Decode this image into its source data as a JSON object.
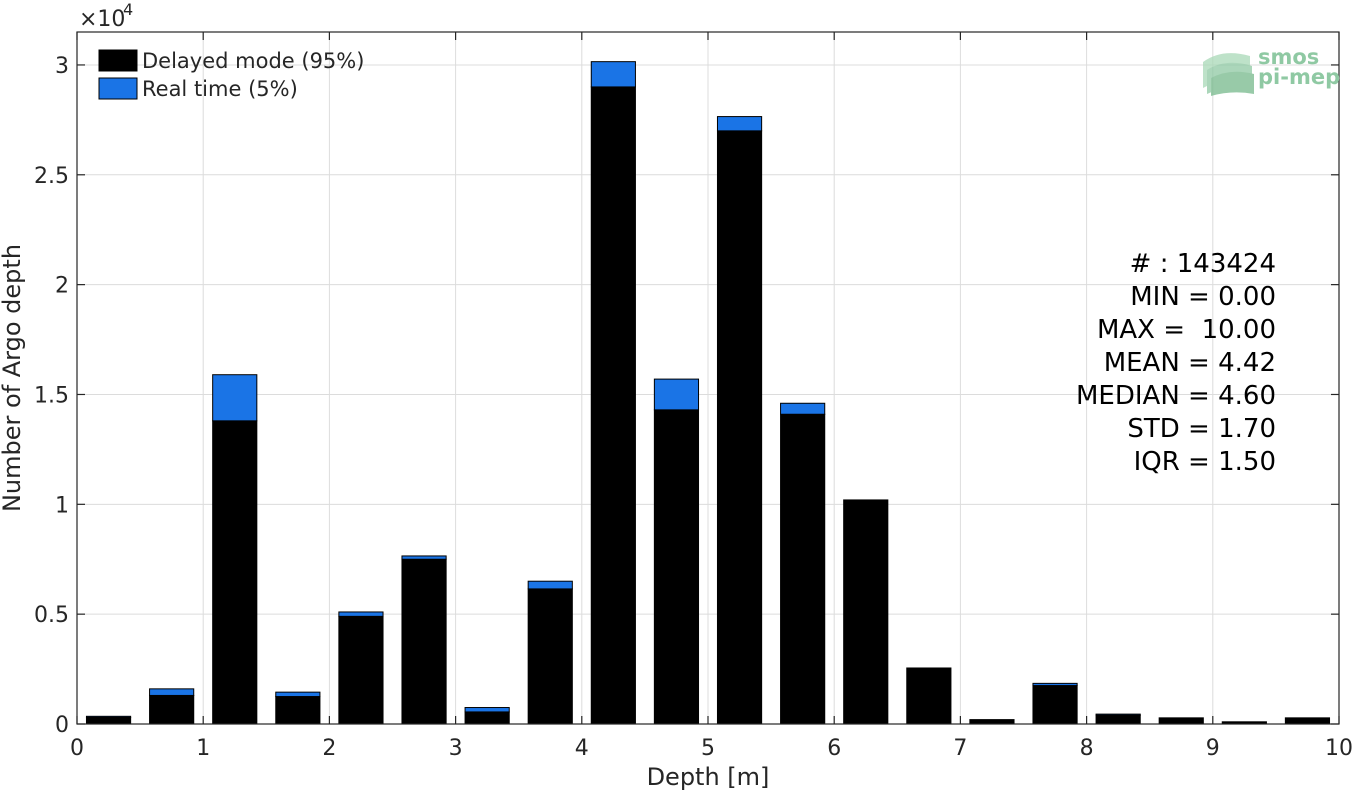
{
  "chart_data": {
    "type": "bar",
    "stacked": true,
    "x": [
      0.25,
      0.75,
      1.25,
      1.75,
      2.25,
      2.75,
      3.25,
      3.75,
      4.25,
      4.75,
      5.25,
      5.75,
      6.25,
      6.75,
      7.25,
      7.75,
      8.25,
      8.75,
      9.25,
      9.75
    ],
    "bar_width": 0.35,
    "series": [
      {
        "name": "Delayed mode (95%)",
        "color": "#000000",
        "values": [
          300,
          1300,
          13800,
          1250,
          4900,
          7500,
          550,
          6150,
          29000,
          14300,
          27000,
          14100,
          10200,
          2550,
          200,
          1750,
          400,
          280,
          100,
          280
        ]
      },
      {
        "name": "Real time (5%)",
        "color": "#1a74e6",
        "values": [
          50,
          300,
          2100,
          200,
          200,
          150,
          200,
          350,
          1150,
          1400,
          650,
          500,
          0,
          0,
          0,
          100,
          50,
          0,
          0,
          0
        ]
      }
    ],
    "xlabel": "Depth [m]",
    "ylabel": "Number of Argo depth",
    "xlim": [
      0,
      10
    ],
    "ylim": [
      0,
      31500
    ],
    "xticks": [
      "0",
      "1",
      "2",
      "3",
      "4",
      "5",
      "6",
      "7",
      "8",
      "9",
      "10"
    ],
    "xtick_values": [
      0,
      1,
      2,
      3,
      4,
      5,
      6,
      7,
      8,
      9,
      10
    ],
    "yticks": [
      "0",
      "0.5",
      "1",
      "1.5",
      "2",
      "2.5",
      "3"
    ],
    "ytick_values": [
      0,
      5000,
      10000,
      15000,
      20000,
      25000,
      30000
    ],
    "yexponent_base": "×10",
    "yexponent_power": "4",
    "grid": true,
    "legend_position": "top-left",
    "annotations": [
      "# : 143424",
      "MIN = 0.00",
      "MAX =  10.00",
      "MEAN = 4.42",
      "MEDIAN = 4.60",
      "STD = 1.70",
      "IQR = 1.50"
    ]
  },
  "logo": {
    "line1": "smos",
    "line2": "pi-mep",
    "color": "#8fc9a3"
  }
}
